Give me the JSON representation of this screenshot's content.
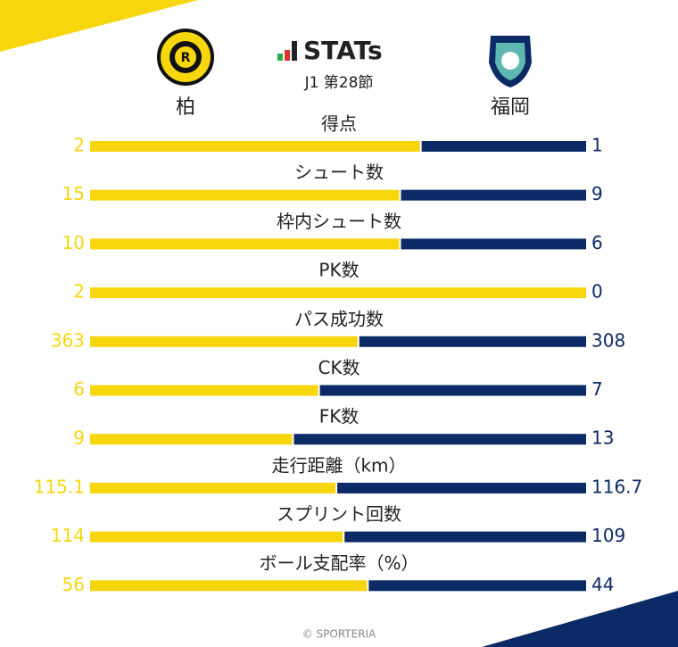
{
  "chart_data": {
    "type": "split-bar",
    "title": "STATs",
    "subtitle": "J1 第28節",
    "categories": [
      "得点",
      "シュート数",
      "枠内シュート数",
      "PK数",
      "パス成功数",
      "CK数",
      "FK数",
      "走行距離（km）",
      "スプリント回数",
      "ボール支配率（%）"
    ],
    "series": [
      {
        "name": "柏",
        "color": "#f7d60d",
        "values": [
          2,
          15,
          10,
          2,
          363,
          6,
          9,
          115.1,
          114,
          56
        ]
      },
      {
        "name": "福岡",
        "color": "#0b2a66",
        "values": [
          1,
          9,
          6,
          0,
          308,
          7,
          13,
          116.7,
          109,
          44
        ]
      }
    ],
    "footer": "© SPORTERIA"
  }
}
